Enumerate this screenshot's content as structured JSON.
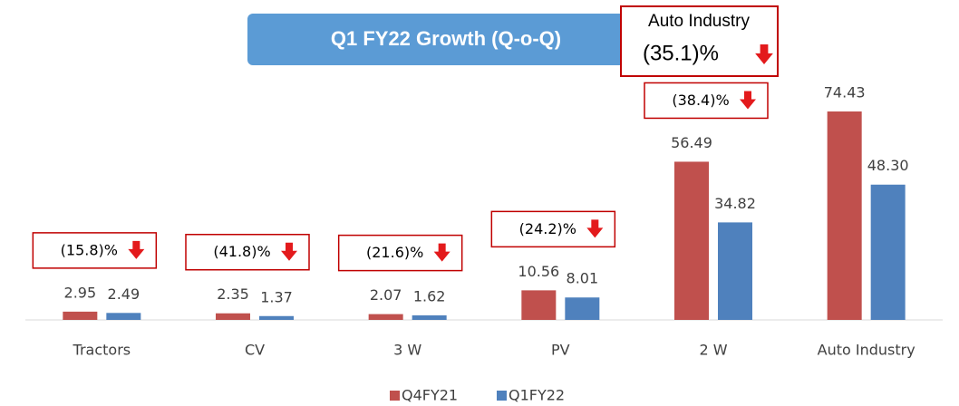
{
  "chart_data": {
    "type": "bar",
    "title": "Q1 FY22 Growth (Q-o-Q)",
    "categories": [
      "Tractors",
      "CV",
      "3 W",
      "PV",
      "2 W",
      "Auto Industry"
    ],
    "series": [
      {
        "name": "Q4FY21",
        "color": "#c0504d",
        "values": [
          2.95,
          2.35,
          2.07,
          10.56,
          56.49,
          74.43
        ],
        "value_labels": [
          "2.95",
          "2.35",
          "2.07",
          "10.56",
          "56.49",
          "74.43"
        ]
      },
      {
        "name": "Q1FY22",
        "color": "#4f81bd",
        "values": [
          2.49,
          1.37,
          1.62,
          8.01,
          34.82,
          48.3
        ],
        "value_labels": [
          "2.49",
          "1.37",
          "1.62",
          "8.01",
          "34.82",
          "48.30"
        ]
      }
    ],
    "annotations": [
      "(15.8)%",
      "(41.8)%",
      "(21.6)%",
      "(24.2)%",
      "(38.4)%"
    ],
    "highlight": {
      "label": "Auto Industry",
      "growth": "(35.1)%"
    },
    "ylim": [
      0,
      111
    ],
    "legend": "bottom"
  }
}
